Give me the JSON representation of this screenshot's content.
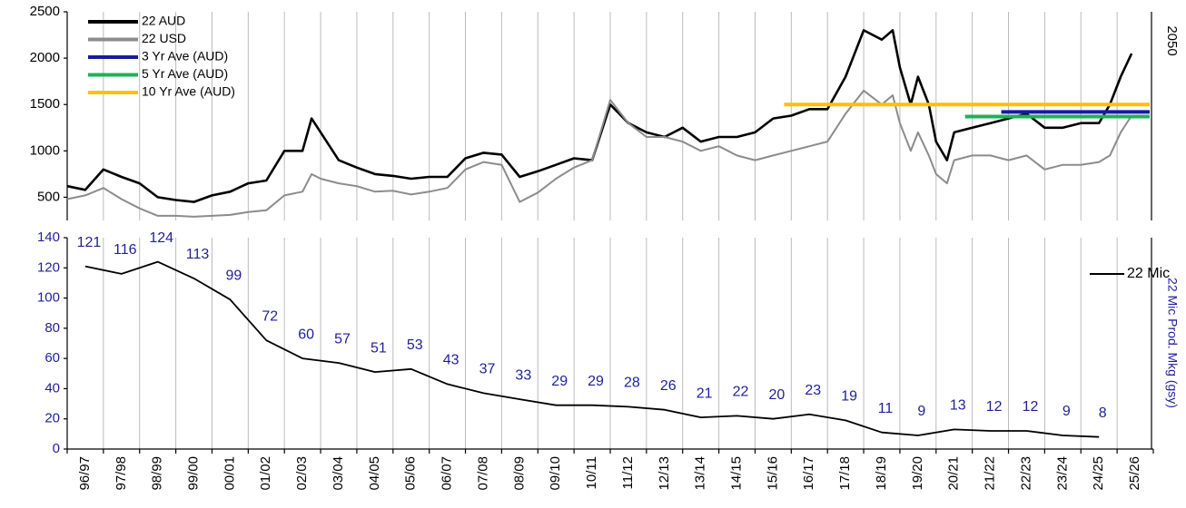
{
  "chart_data": [
    {
      "type": "line",
      "xlim": [
        1996.5,
        2026.5
      ],
      "ylim": [
        250,
        2500
      ],
      "yticks": [
        500,
        1000,
        1500,
        2000,
        2500
      ],
      "legend": "upper left",
      "annotation": "2050",
      "series": [
        {
          "name": "22 AUD",
          "color": "#000000",
          "x": [
            1996.5,
            1997.0,
            1997.5,
            1998.0,
            1998.5,
            1999.0,
            1999.5,
            2000.0,
            2000.5,
            2001.0,
            2001.5,
            2002.0,
            2002.5,
            2003.0,
            2003.25,
            2003.5,
            2004.0,
            2004.5,
            2005.0,
            2005.5,
            2006.0,
            2006.5,
            2007.0,
            2007.5,
            2008.0,
            2008.5,
            2009.0,
            2009.5,
            2010.0,
            2010.5,
            2011.0,
            2011.5,
            2012.0,
            2012.5,
            2013.0,
            2013.5,
            2014.0,
            2014.5,
            2015.0,
            2015.5,
            2016.0,
            2016.5,
            2017.0,
            2017.5,
            2018.0,
            2018.5,
            2019.0,
            2019.3,
            2019.5,
            2019.8,
            2020.0,
            2020.3,
            2020.5,
            2020.8,
            2021.0,
            2021.5,
            2022.0,
            2022.5,
            2023.0,
            2023.5,
            2024.0,
            2024.5,
            2025.0,
            2025.3,
            2025.6,
            2025.9
          ],
          "values": [
            620,
            580,
            800,
            720,
            650,
            500,
            470,
            450,
            520,
            560,
            650,
            680,
            1000,
            1000,
            1350,
            1200,
            900,
            820,
            750,
            730,
            700,
            720,
            720,
            920,
            980,
            960,
            720,
            780,
            850,
            920,
            900,
            1500,
            1300,
            1200,
            1150,
            1250,
            1100,
            1150,
            1150,
            1200,
            1350,
            1380,
            1450,
            1450,
            1800,
            2300,
            2200,
            2300,
            1900,
            1500,
            1800,
            1500,
            1100,
            900,
            1200,
            1250,
            1300,
            1350,
            1400,
            1250,
            1250,
            1300,
            1300,
            1500,
            1800,
            2050
          ]
        },
        {
          "name": "22 USD",
          "color": "#8c8c8c",
          "x": [
            1996.5,
            1997.0,
            1997.5,
            1998.0,
            1998.5,
            1999.0,
            1999.5,
            2000.0,
            2000.5,
            2001.0,
            2001.5,
            2002.0,
            2002.5,
            2003.0,
            2003.25,
            2003.5,
            2004.0,
            2004.5,
            2005.0,
            2005.5,
            2006.0,
            2006.5,
            2007.0,
            2007.5,
            2008.0,
            2008.5,
            2009.0,
            2009.5,
            2010.0,
            2010.5,
            2011.0,
            2011.5,
            2012.0,
            2012.5,
            2013.0,
            2013.5,
            2014.0,
            2014.5,
            2015.0,
            2015.5,
            2016.0,
            2016.5,
            2017.0,
            2017.5,
            2018.0,
            2018.5,
            2019.0,
            2019.3,
            2019.5,
            2019.8,
            2020.0,
            2020.3,
            2020.5,
            2020.8,
            2021.0,
            2021.5,
            2022.0,
            2022.5,
            2023.0,
            2023.5,
            2024.0,
            2024.5,
            2025.0,
            2025.3,
            2025.6,
            2025.9
          ],
          "values": [
            480,
            520,
            600,
            480,
            380,
            300,
            300,
            290,
            300,
            310,
            340,
            360,
            520,
            560,
            750,
            700,
            650,
            620,
            560,
            570,
            530,
            560,
            600,
            800,
            880,
            850,
            450,
            550,
            700,
            820,
            900,
            1550,
            1300,
            1150,
            1150,
            1100,
            1000,
            1050,
            950,
            900,
            950,
            1000,
            1050,
            1100,
            1400,
            1650,
            1500,
            1600,
            1300,
            1000,
            1200,
            950,
            750,
            650,
            900,
            950,
            950,
            900,
            950,
            800,
            850,
            850,
            880,
            950,
            1200,
            1380
          ]
        },
        {
          "name": "3 Yr Ave (AUD)",
          "color": "#1a1a9c",
          "x": [
            2022.3,
            2026.4
          ],
          "values": [
            1420,
            1420
          ]
        },
        {
          "name": "5 Yr Ave (AUD)",
          "color": "#1db15a",
          "x": [
            2021.3,
            2026.4
          ],
          "values": [
            1370,
            1370
          ]
        },
        {
          "name": "10 Yr Ave (AUD)",
          "color": "#ffc000",
          "x": [
            2016.3,
            2026.4
          ],
          "values": [
            1500,
            1500
          ]
        }
      ]
    },
    {
      "type": "line",
      "categories": [
        "96/97",
        "97/98",
        "98/99",
        "99/00",
        "00/01",
        "01/02",
        "02/03",
        "03/04",
        "04/05",
        "05/06",
        "06/07",
        "07/08",
        "08/09",
        "09/10",
        "10/11",
        "11/12",
        "12/13",
        "13/14",
        "14/15",
        "15/16",
        "16/17",
        "17/18",
        "18/19",
        "19/20",
        "20/21",
        "21/22",
        "22/23",
        "23/24",
        "24/25",
        "25/26"
      ],
      "ylim": [
        0,
        140
      ],
      "yticks": [
        0,
        20,
        40,
        60,
        80,
        100,
        120,
        140
      ],
      "y_label": "22 Mic Prod. Mkg (gsy)",
      "legend": "upper right",
      "series": [
        {
          "name": "22 Mic",
          "color": "#000000",
          "values": [
            121,
            116,
            124,
            113,
            99,
            72,
            60,
            57,
            51,
            53,
            43,
            37,
            33,
            29,
            29,
            28,
            26,
            21,
            22,
            20,
            23,
            19,
            11,
            9,
            13,
            12,
            12,
            9,
            8,
            null
          ]
        }
      ]
    }
  ]
}
